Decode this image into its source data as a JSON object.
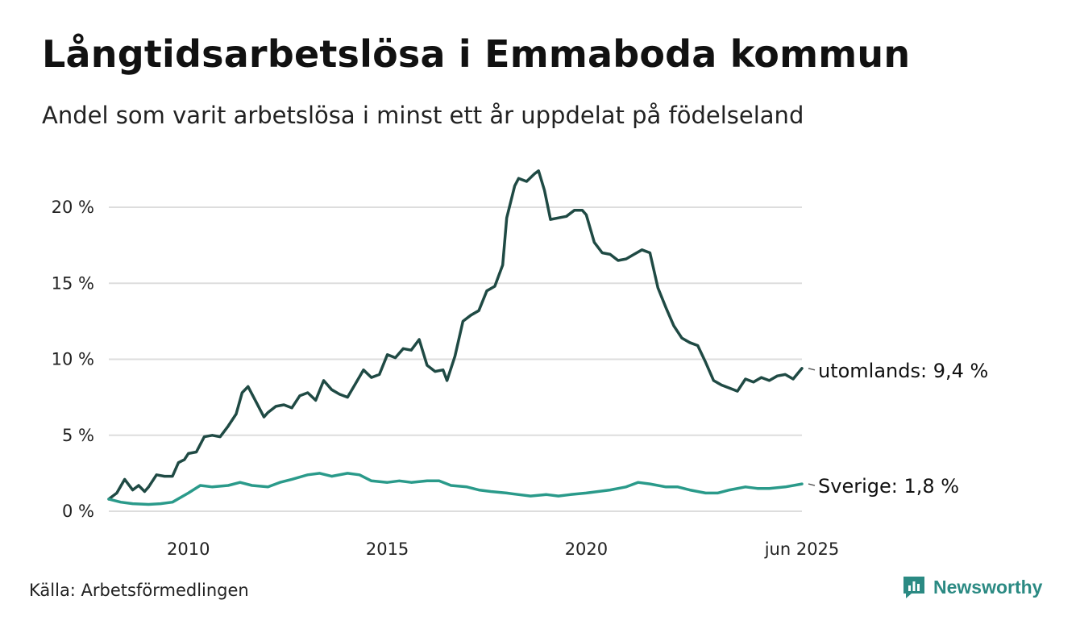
{
  "title": "Långtidsarbetslösa i Emmaboda kommun",
  "subtitle": "Andel som varit arbetslösa i minst ett år uppdelat på födelseland",
  "source": "Källa: Arbetsförmedlingen",
  "brand": {
    "name": "Newsworthy",
    "icon": "newsworthy-logo-icon",
    "color": "#2b8a83"
  },
  "chart_data": {
    "type": "line",
    "y_ticks": [
      {
        "value": 0,
        "label": "0 %"
      },
      {
        "value": 5,
        "label": "5 %"
      },
      {
        "value": 10,
        "label": "10 %"
      },
      {
        "value": 15,
        "label": "15 %"
      },
      {
        "value": 20,
        "label": "20 %"
      }
    ],
    "x_ticks": [
      {
        "value": 2010,
        "label": "2010"
      },
      {
        "value": 2015,
        "label": "2015"
      },
      {
        "value": 2020,
        "label": "2020"
      },
      {
        "value": 2025.42,
        "label": "jun 2025"
      }
    ],
    "xlim": [
      2008.0,
      2025.42
    ],
    "ylim": [
      0,
      22.5
    ],
    "grid": true,
    "series": [
      {
        "name": "utomlands",
        "end_label": "utomlands: 9,4 %",
        "color": "#1f4a44",
        "x": [
          2008.0,
          2008.2,
          2008.4,
          2008.6,
          2008.75,
          2008.9,
          2009.0,
          2009.2,
          2009.4,
          2009.6,
          2009.75,
          2009.9,
          2010.0,
          2010.2,
          2010.4,
          2010.6,
          2010.8,
          2011.0,
          2011.2,
          2011.35,
          2011.5,
          2011.7,
          2011.9,
          2012.0,
          2012.2,
          2012.4,
          2012.6,
          2012.8,
          2013.0,
          2013.2,
          2013.4,
          2013.6,
          2013.8,
          2014.0,
          2014.2,
          2014.4,
          2014.6,
          2014.8,
          2015.0,
          2015.2,
          2015.4,
          2015.6,
          2015.8,
          2016.0,
          2016.2,
          2016.4,
          2016.5,
          2016.7,
          2016.9,
          2017.1,
          2017.3,
          2017.5,
          2017.7,
          2017.9,
          2018.0,
          2018.2,
          2018.3,
          2018.5,
          2018.7,
          2018.8,
          2018.95,
          2019.1,
          2019.3,
          2019.5,
          2019.7,
          2019.9,
          2020.0,
          2020.2,
          2020.4,
          2020.6,
          2020.8,
          2021.0,
          2021.2,
          2021.4,
          2021.6,
          2021.8,
          2022.0,
          2022.2,
          2022.4,
          2022.6,
          2022.8,
          2023.0,
          2023.2,
          2023.4,
          2023.6,
          2023.8,
          2024.0,
          2024.2,
          2024.4,
          2024.6,
          2024.8,
          2025.0,
          2025.2,
          2025.42
        ],
        "y": [
          0.8,
          1.2,
          2.1,
          1.4,
          1.7,
          1.3,
          1.6,
          2.4,
          2.3,
          2.3,
          3.2,
          3.4,
          3.8,
          3.9,
          4.9,
          5.0,
          4.9,
          5.6,
          6.4,
          7.8,
          8.2,
          7.2,
          6.2,
          6.5,
          6.9,
          7.0,
          6.8,
          7.6,
          7.8,
          7.3,
          8.6,
          8.0,
          7.7,
          7.5,
          8.4,
          9.3,
          8.8,
          9.0,
          10.3,
          10.1,
          10.7,
          10.6,
          11.3,
          9.6,
          9.2,
          9.3,
          8.6,
          10.2,
          12.5,
          12.9,
          13.2,
          14.5,
          14.8,
          16.2,
          19.3,
          21.4,
          21.9,
          21.7,
          22.2,
          22.4,
          21.1,
          19.2,
          19.3,
          19.4,
          19.8,
          19.8,
          19.5,
          17.7,
          17.0,
          16.9,
          16.5,
          16.6,
          16.9,
          17.2,
          17.0,
          14.7,
          13.4,
          12.2,
          11.4,
          11.1,
          10.9,
          9.8,
          8.6,
          8.3,
          8.1,
          7.9,
          8.7,
          8.5,
          8.8,
          8.6,
          8.9,
          9.0,
          8.7,
          9.4
        ]
      },
      {
        "name": "Sverige",
        "end_label": "Sverige: 1,8 %",
        "color": "#2a9a8a",
        "x": [
          2008.0,
          2008.3,
          2008.6,
          2009.0,
          2009.3,
          2009.6,
          2010.0,
          2010.3,
          2010.6,
          2011.0,
          2011.3,
          2011.6,
          2012.0,
          2012.3,
          2012.6,
          2013.0,
          2013.3,
          2013.6,
          2014.0,
          2014.3,
          2014.6,
          2015.0,
          2015.3,
          2015.6,
          2016.0,
          2016.3,
          2016.6,
          2017.0,
          2017.3,
          2017.6,
          2018.0,
          2018.3,
          2018.6,
          2019.0,
          2019.3,
          2019.6,
          2020.0,
          2020.3,
          2020.6,
          2021.0,
          2021.3,
          2021.6,
          2022.0,
          2022.3,
          2022.6,
          2023.0,
          2023.3,
          2023.6,
          2024.0,
          2024.3,
          2024.6,
          2025.0,
          2025.42
        ],
        "y": [
          0.8,
          0.6,
          0.5,
          0.45,
          0.5,
          0.6,
          1.2,
          1.7,
          1.6,
          1.7,
          1.9,
          1.7,
          1.6,
          1.9,
          2.1,
          2.4,
          2.5,
          2.3,
          2.5,
          2.4,
          2.0,
          1.9,
          2.0,
          1.9,
          2.0,
          2.0,
          1.7,
          1.6,
          1.4,
          1.3,
          1.2,
          1.1,
          1.0,
          1.1,
          1.0,
          1.1,
          1.2,
          1.3,
          1.4,
          1.6,
          1.9,
          1.8,
          1.6,
          1.6,
          1.4,
          1.2,
          1.2,
          1.4,
          1.6,
          1.5,
          1.5,
          1.6,
          1.8
        ]
      }
    ]
  }
}
